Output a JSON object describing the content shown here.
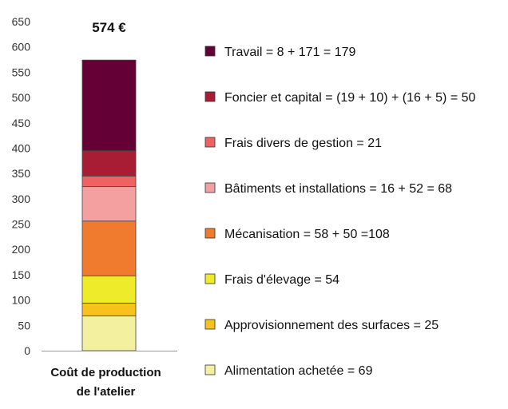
{
  "chart_data": {
    "type": "bar",
    "stacked": true,
    "categories": [
      "Coût de production de l'atelier"
    ],
    "category_label_lines": [
      "Coût de production",
      "de l'atelier"
    ],
    "total_label": "574 €",
    "ylim": [
      0,
      650
    ],
    "yticks": [
      0,
      50,
      100,
      150,
      200,
      250,
      300,
      350,
      400,
      450,
      500,
      550,
      600,
      650
    ],
    "legend_position": "right",
    "grid": false,
    "series": [
      {
        "name": "Alimentation achetée",
        "value": 69,
        "color": "#f3f0a0",
        "legend": "Alimentation achetée = 69"
      },
      {
        "name": "Approvisionnement des surfaces",
        "value": 25,
        "color": "#f7c21c",
        "legend": "Approvisionnement des surfaces = 25"
      },
      {
        "name": "Frais d'élevage",
        "value": 54,
        "color": "#eeeb2a",
        "legend": "Frais d'élevage = 54"
      },
      {
        "name": "Mécanisation",
        "value": 108,
        "color": "#f07a2e",
        "legend": "Mécanisation = 58 + 50 =108"
      },
      {
        "name": "Bâtiments et installations",
        "value": 68,
        "color": "#f4a0a0",
        "legend": "Bâtiments et installations = 16 + 52 = 68"
      },
      {
        "name": "Frais divers de gestion",
        "value": 21,
        "color": "#ee6262",
        "legend": "Frais divers de gestion = 21"
      },
      {
        "name": "Foncier et capital",
        "value": 50,
        "color": "#a81d33",
        "legend": "Foncier et capital = (19 + 10) + (16 + 5) = 50"
      },
      {
        "name": "Travail",
        "value": 179,
        "color": "#640036",
        "legend": "Travail = 8 + 171 = 179"
      }
    ]
  }
}
